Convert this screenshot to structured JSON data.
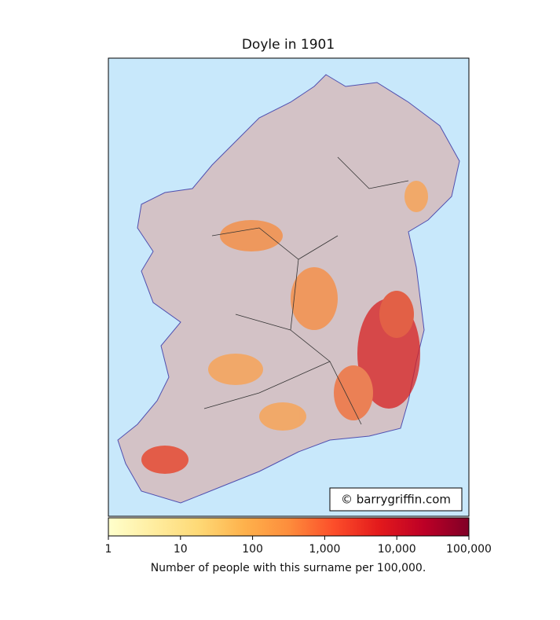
{
  "title": "Doyle in 1901",
  "credit": "© barrygriffin.com",
  "colorbar": {
    "scale": "log",
    "lim": [
      1,
      100000
    ],
    "ticks": [
      1,
      10,
      100,
      {
        "value": 1000,
        "label": "1,000"
      },
      {
        "value": 10000,
        "label": "10,000"
      },
      {
        "value": 100000,
        "label": "100,000"
      }
    ],
    "label": "Number of people with this surname per 100,000.",
    "colors": [
      "#ffffcc",
      "#ffeda0",
      "#fed976",
      "#feb24c",
      "#fd8d3c",
      "#fc4e2a",
      "#e31a1c",
      "#bd0026",
      "#800026"
    ]
  }
}
